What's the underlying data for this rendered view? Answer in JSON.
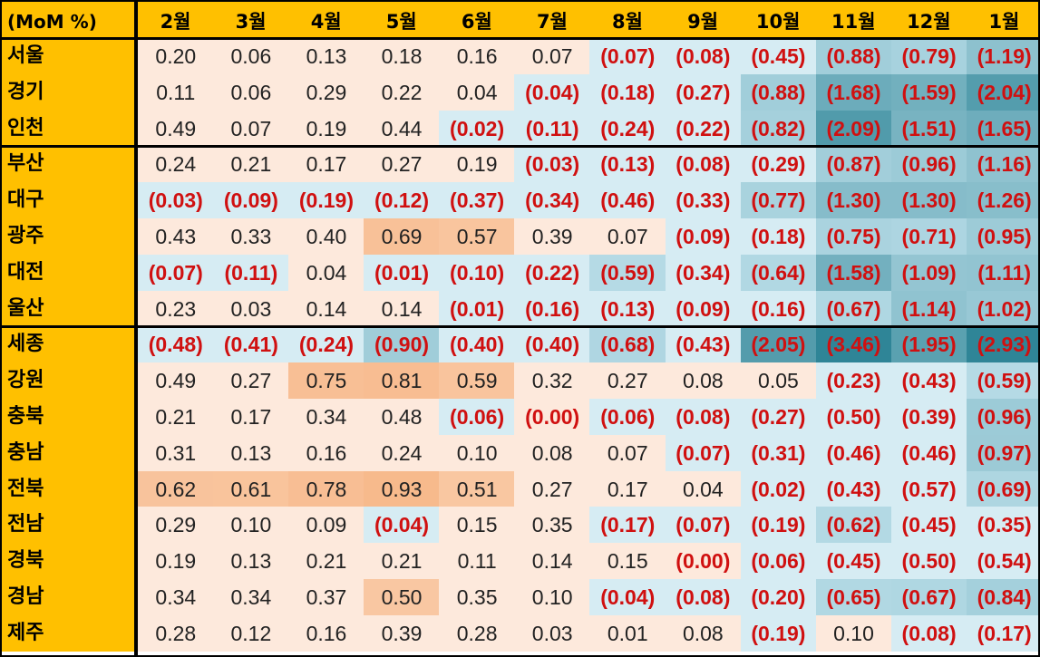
{
  "chart_data": {
    "type": "heatmap",
    "title": "(MoM %)",
    "columns": [
      "2월",
      "3월",
      "4월",
      "5월",
      "6월",
      "7월",
      "8월",
      "9월",
      "10월",
      "11월",
      "12월",
      "1월"
    ],
    "rows": [
      {
        "label": "서울",
        "values": [
          "0.20",
          "0.06",
          "0.13",
          "0.18",
          "0.16",
          "0.07",
          "(0.07)",
          "(0.08)",
          "(0.45)",
          "(0.88)",
          "(0.79)",
          "(1.19)"
        ]
      },
      {
        "label": "경기",
        "values": [
          "0.11",
          "0.06",
          "0.29",
          "0.22",
          "0.04",
          "(0.04)",
          "(0.18)",
          "(0.27)",
          "(0.88)",
          "(1.68)",
          "(1.59)",
          "(2.04)"
        ]
      },
      {
        "label": "인천",
        "values": [
          "0.49",
          "0.07",
          "0.19",
          "0.44",
          "(0.02)",
          "(0.11)",
          "(0.24)",
          "(0.22)",
          "(0.82)",
          "(2.09)",
          "(1.51)",
          "(1.65)"
        ]
      },
      {
        "label": "부산",
        "values": [
          "0.24",
          "0.21",
          "0.17",
          "0.27",
          "0.19",
          "(0.03)",
          "(0.13)",
          "(0.08)",
          "(0.29)",
          "(0.87)",
          "(0.96)",
          "(1.16)"
        ]
      },
      {
        "label": "대구",
        "values": [
          "(0.03)",
          "(0.09)",
          "(0.19)",
          "(0.12)",
          "(0.37)",
          "(0.34)",
          "(0.46)",
          "(0.33)",
          "(0.77)",
          "(1.30)",
          "(1.30)",
          "(1.26)"
        ]
      },
      {
        "label": "광주",
        "values": [
          "0.43",
          "0.33",
          "0.40",
          "0.69",
          "0.57",
          "0.39",
          "0.07",
          "(0.09)",
          "(0.18)",
          "(0.75)",
          "(0.71)",
          "(0.95)"
        ]
      },
      {
        "label": "대전",
        "values": [
          "(0.07)",
          "(0.11)",
          "0.04",
          "(0.01)",
          "(0.10)",
          "(0.22)",
          "(0.59)",
          "(0.34)",
          "(0.64)",
          "(1.58)",
          "(1.09)",
          "(1.11)"
        ]
      },
      {
        "label": "울산",
        "values": [
          "0.23",
          "0.03",
          "0.14",
          "0.14",
          "(0.01)",
          "(0.16)",
          "(0.13)",
          "(0.09)",
          "(0.16)",
          "(0.67)",
          "(1.14)",
          "(1.02)"
        ]
      },
      {
        "label": "세종",
        "values": [
          "(0.48)",
          "(0.41)",
          "(0.24)",
          "(0.90)",
          "(0.40)",
          "(0.40)",
          "(0.68)",
          "(0.43)",
          "(2.05)",
          "(3.46)",
          "(1.95)",
          "(2.93)"
        ]
      },
      {
        "label": "강원",
        "values": [
          "0.49",
          "0.27",
          "0.75",
          "0.81",
          "0.59",
          "0.32",
          "0.27",
          "0.08",
          "0.05",
          "(0.23)",
          "(0.43)",
          "(0.59)"
        ]
      },
      {
        "label": "충북",
        "values": [
          "0.21",
          "0.17",
          "0.34",
          "0.48",
          "(0.06)",
          "(0.00)",
          "(0.06)",
          "(0.08)",
          "(0.27)",
          "(0.50)",
          "(0.39)",
          "(0.96)"
        ]
      },
      {
        "label": "충남",
        "values": [
          "0.31",
          "0.13",
          "0.16",
          "0.24",
          "0.10",
          "0.08",
          "0.07",
          "(0.07)",
          "(0.31)",
          "(0.46)",
          "(0.46)",
          "(0.97)"
        ]
      },
      {
        "label": "전북",
        "values": [
          "0.62",
          "0.61",
          "0.78",
          "0.93",
          "0.51",
          "0.27",
          "0.17",
          "0.04",
          "(0.02)",
          "(0.43)",
          "(0.57)",
          "(0.69)"
        ]
      },
      {
        "label": "전남",
        "values": [
          "0.29",
          "0.10",
          "0.09",
          "(0.04)",
          "0.15",
          "0.35",
          "(0.17)",
          "(0.07)",
          "(0.19)",
          "(0.62)",
          "(0.45)",
          "(0.35)"
        ]
      },
      {
        "label": "경북",
        "values": [
          "0.19",
          "0.13",
          "0.21",
          "0.21",
          "0.11",
          "0.14",
          "0.15",
          "(0.00)",
          "(0.06)",
          "(0.45)",
          "(0.50)",
          "(0.54)"
        ]
      },
      {
        "label": "경남",
        "values": [
          "0.34",
          "0.34",
          "0.37",
          "0.50",
          "0.35",
          "0.10",
          "(0.04)",
          "(0.08)",
          "(0.20)",
          "(0.65)",
          "(0.67)",
          "(0.84)"
        ]
      },
      {
        "label": "제주",
        "values": [
          "0.28",
          "0.12",
          "0.16",
          "0.39",
          "0.28",
          "0.03",
          "0.01",
          "0.08",
          "(0.19)",
          "0.10",
          "(0.08)",
          "(0.17)"
        ]
      }
    ],
    "colors": {
      "header_bg": "#ffc000",
      "negative_text": "#d01010",
      "positive_text": "#222222",
      "low_positive": "#fde9dc",
      "high_positive": "#f7b98b",
      "neg_light": "#d6ecf3",
      "neg_dark": "#2f8597"
    }
  }
}
